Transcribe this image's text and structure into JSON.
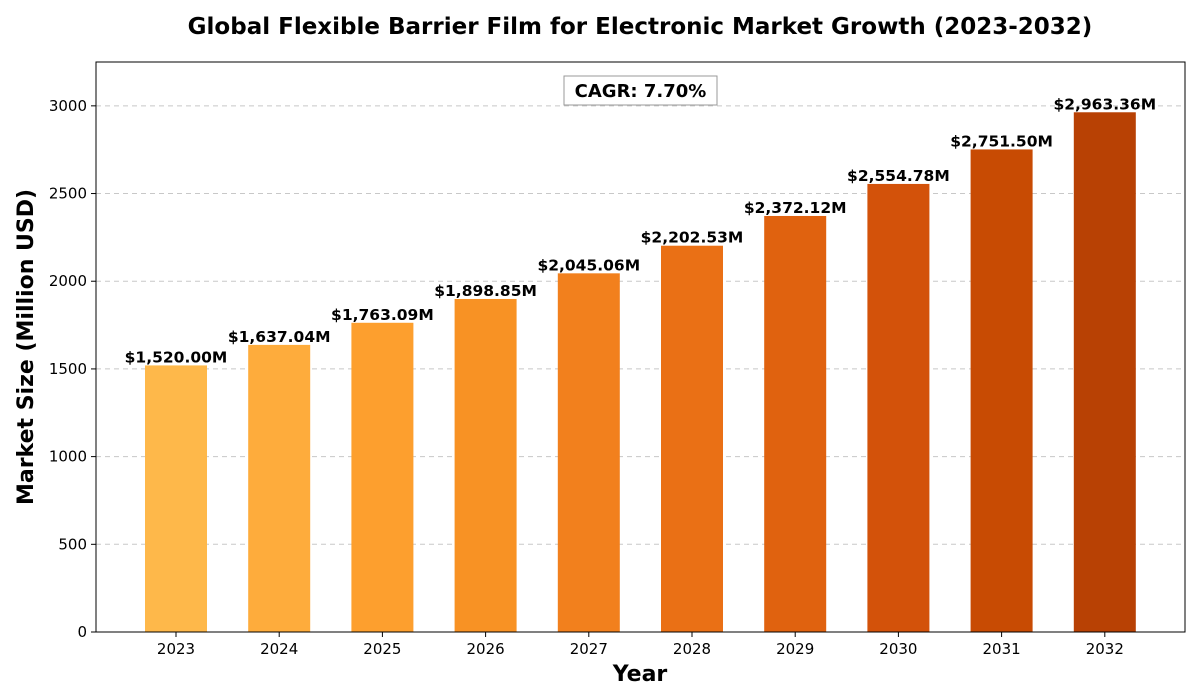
{
  "chart_data": {
    "type": "bar",
    "title": "Global Flexible Barrier Film for Electronic Market Growth (2023-2032)",
    "xlabel": "Year",
    "ylabel": "Market Size (Million USD)",
    "categories": [
      "2023",
      "2024",
      "2025",
      "2026",
      "2027",
      "2028",
      "2029",
      "2030",
      "2031",
      "2032"
    ],
    "values": [
      1520.0,
      1637.04,
      1763.09,
      1898.85,
      2045.06,
      2202.53,
      2372.12,
      2554.78,
      2751.5,
      2963.36
    ],
    "data_labels": [
      "$1,520.00M",
      "$1,637.04M",
      "$1,763.09M",
      "$1,898.85M",
      "$2,045.06M",
      "$2,202.53M",
      "$2,372.12M",
      "$2,554.78M",
      "$2,751.50M",
      "$2,963.36M"
    ],
    "bar_colors": [
      "#feb84a",
      "#feac3c",
      "#fd9f2e",
      "#f89224",
      "#f2801d",
      "#ea7015",
      "#e0620f",
      "#d3520a",
      "#c84b03",
      "#b84104"
    ],
    "ylim": [
      0,
      3250
    ],
    "yticks": [
      0,
      500,
      1000,
      1500,
      2000,
      2500,
      3000
    ],
    "grid": "horizontal dashed",
    "annotation": "CAGR: 7.70%"
  }
}
